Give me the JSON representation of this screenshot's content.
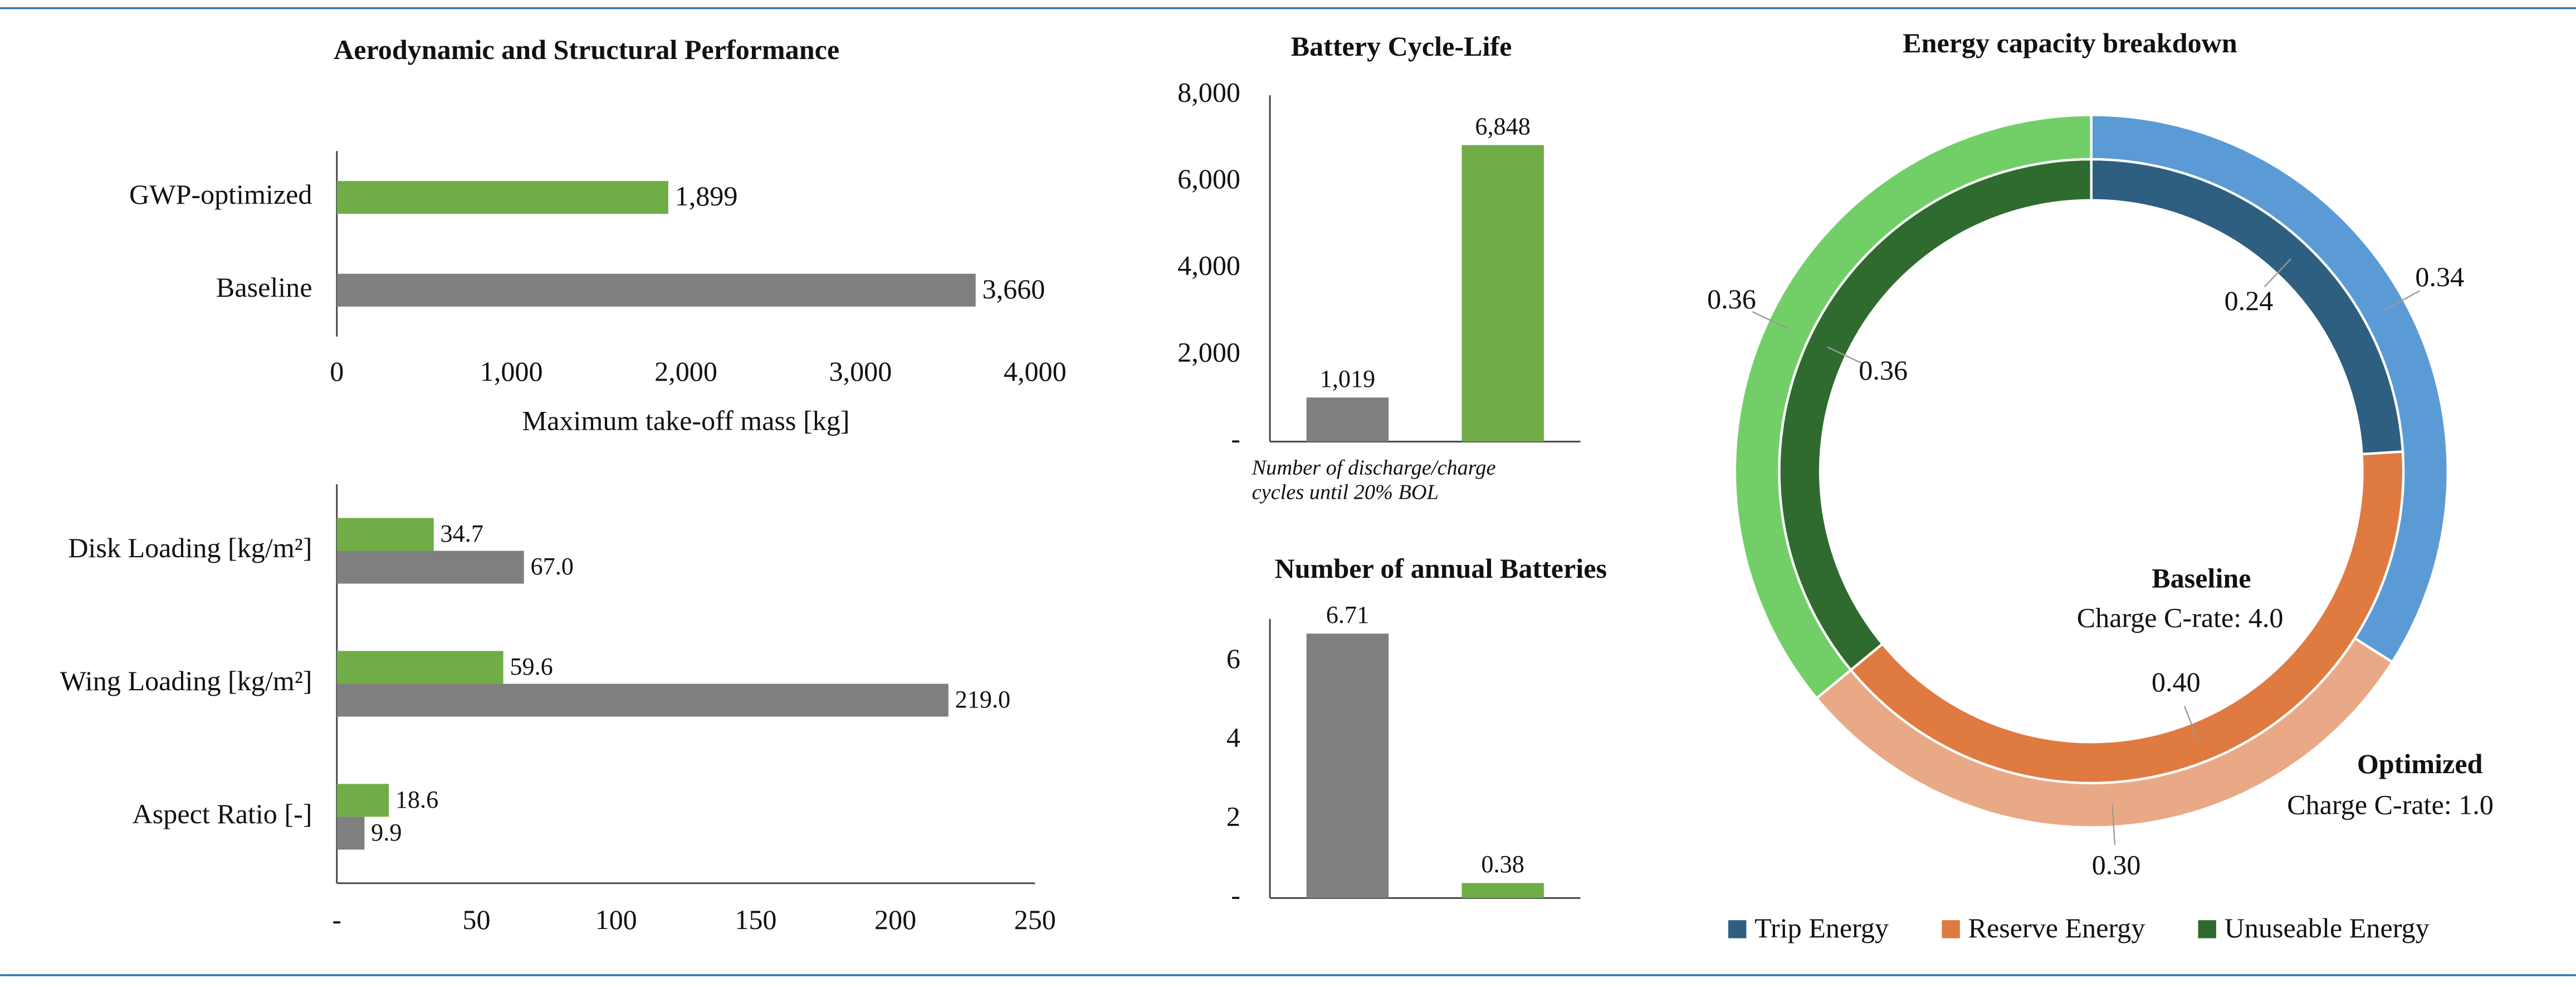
{
  "chart_data": [
    {
      "type": "hbar",
      "title": "Aerodynamic and Structural Performance",
      "categories": [
        "GWP-optimized",
        "Baseline"
      ],
      "values": [
        1899,
        3660
      ],
      "value_labels": [
        "1,899",
        "3,660"
      ],
      "colors": [
        "#70ad47",
        "#7f7f7f"
      ],
      "xlim": [
        0,
        4000
      ],
      "xticks": [
        0,
        {
          "value": 1000,
          "label": "1,000"
        },
        {
          "value": 2000,
          "label": "2,000"
        },
        {
          "value": 3000,
          "label": "3,000"
        },
        {
          "value": 4000,
          "label": "4,000"
        }
      ],
      "xlabel": "Maximum take-off mass [kg]",
      "grid": false
    },
    {
      "type": "hbar",
      "categories": [
        "Disk Loading [kg/m²]",
        "Wing Loading [kg/m²]",
        "Aspect Ratio [-]"
      ],
      "series": [
        {
          "color": "#70ad47",
          "values": [
            34.7,
            59.6,
            18.6
          ]
        },
        {
          "color": "#7f7f7f",
          "values": [
            67.0,
            219.0,
            9.9
          ],
          "value_labels": [
            "67.0",
            "219.0",
            "9.9"
          ]
        }
      ],
      "xlim": [
        0,
        250
      ],
      "xticks": [
        {
          "value": 0,
          "label": "-"
        },
        50,
        100,
        150,
        200,
        250
      ],
      "grid": false
    },
    {
      "type": "bar",
      "title": "Battery Cycle-Life",
      "categories": [
        null,
        null
      ],
      "values": [
        1019,
        6848
      ],
      "value_labels": [
        "1,019",
        "6,848"
      ],
      "colors": [
        "#7f7f7f",
        "#70ad47"
      ],
      "ylim": [
        0,
        8000
      ],
      "yticks": [
        {
          "value": 0,
          "label": "-"
        },
        {
          "value": 2000,
          "label": "2,000"
        },
        {
          "value": 4000,
          "label": "4,000"
        },
        {
          "value": 6000,
          "label": "6,000"
        },
        {
          "value": 8000,
          "label": "8,000"
        }
      ],
      "note": [
        "Number of discharge/charge",
        "cycles until 20% BOL"
      ],
      "grid": false
    },
    {
      "type": "bar",
      "title": "Number of annual Batteries",
      "categories": [
        null,
        null
      ],
      "values": [
        6.71,
        0.38
      ],
      "colors": [
        "#7f7f7f",
        "#70ad47"
      ],
      "ylim": [
        0,
        7
      ],
      "yticks": [
        {
          "value": 0,
          "label": "-"
        },
        2,
        4,
        6
      ],
      "grid": false
    },
    {
      "type": "donut",
      "title": "Energy capacity breakdown",
      "categories": [
        "Trip Energy",
        "Reserve Energy",
        "Unuseable Energy"
      ],
      "series": [
        {
          "name": "Baseline",
          "subtitle": "Charge C-rate: 4.0",
          "colors": [
            "#2e5f80",
            "#df7a40",
            "#2f6b2f"
          ],
          "values": [
            0.24,
            0.4,
            0.36
          ],
          "value_labels": [
            "0.24",
            "0.40",
            "0.36"
          ]
        },
        {
          "name": "Optimized",
          "subtitle": "Charge C-rate: 1.0",
          "colors": [
            "#5b9bd5",
            "#eaa986",
            "#72cf68"
          ],
          "values": [
            0.34,
            0.3,
            0.36
          ],
          "value_labels": [
            "0.34",
            "0.30",
            "0.36"
          ]
        }
      ]
    }
  ]
}
